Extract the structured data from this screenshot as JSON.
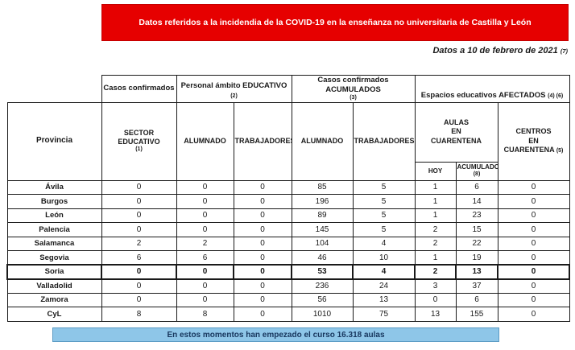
{
  "banner": {
    "text": "Datos referidos a la incidendia de la COVID-19 en la enseñanza no universitaria de Castilla y León"
  },
  "dateline": {
    "text": "Datos a 10 de febrero de 2021",
    "note": "(7)"
  },
  "colors": {
    "banner_bg": "#e60000",
    "banner_text": "#ffffff",
    "footer_bg": "#8ec6e8",
    "footer_text": "#17365d",
    "table_border": "#1a1a1a"
  },
  "table": {
    "group_headers": {
      "casos_confirmados": {
        "label": "Casos confirmados"
      },
      "personal_educativo": {
        "label": "Personal ámbito EDUCATIVO",
        "note": "(2)"
      },
      "casos_acumulados": {
        "label": "Casos confirmados ACUMULADOS",
        "note": "(3)"
      },
      "espacios_afectados": {
        "label": "Espacios educativos AFECTADOS",
        "note": "(4) (6)"
      }
    },
    "columns": {
      "provincia": {
        "label": "Provincia"
      },
      "sector": {
        "label": "SECTOR EDUCATIVO",
        "note": "(1)"
      },
      "alumnado": {
        "label": "ALUMNADO"
      },
      "trabajadores": {
        "label": "TRABAJADORES"
      },
      "alumnado_acum": {
        "label": "ALUMNADO"
      },
      "trabajadores_acum": {
        "label": "TRABAJADORES"
      },
      "aulas_cuarentena": {
        "label": "AULAS\nEN\nCUARENTENA"
      },
      "hoy": {
        "label": "HOY"
      },
      "acumulado": {
        "label": "ACUMULADO",
        "note": "(8)"
      },
      "centros": {
        "label": "CENTROS\nEN\nCUARENTENA",
        "note": "(5)"
      }
    },
    "rows": [
      {
        "province": "Ávila",
        "values": [
          "0",
          "0",
          "0",
          "85",
          "5",
          "1",
          "6",
          "0"
        ],
        "highlight": false
      },
      {
        "province": "Burgos",
        "values": [
          "0",
          "0",
          "0",
          "196",
          "5",
          "1",
          "14",
          "0"
        ],
        "highlight": false
      },
      {
        "province": "León",
        "values": [
          "0",
          "0",
          "0",
          "89",
          "5",
          "1",
          "23",
          "0"
        ],
        "highlight": false
      },
      {
        "province": "Palencia",
        "values": [
          "0",
          "0",
          "0",
          "145",
          "5",
          "2",
          "15",
          "0"
        ],
        "highlight": false
      },
      {
        "province": "Salamanca",
        "values": [
          "2",
          "2",
          "0",
          "104",
          "4",
          "2",
          "22",
          "0"
        ],
        "highlight": false
      },
      {
        "province": "Segovia",
        "values": [
          "6",
          "6",
          "0",
          "46",
          "10",
          "1",
          "19",
          "0"
        ],
        "highlight": false
      },
      {
        "province": "Soria",
        "values": [
          "0",
          "0",
          "0",
          "53",
          "4",
          "2",
          "13",
          "0"
        ],
        "highlight": true
      },
      {
        "province": "Valladolid",
        "values": [
          "0",
          "0",
          "0",
          "236",
          "24",
          "3",
          "37",
          "0"
        ],
        "highlight": false
      },
      {
        "province": "Zamora",
        "values": [
          "0",
          "0",
          "0",
          "56",
          "13",
          "0",
          "6",
          "0"
        ],
        "highlight": false
      },
      {
        "province": "CyL",
        "values": [
          "8",
          "8",
          "0",
          "1010",
          "75",
          "13",
          "155",
          "0"
        ],
        "highlight": false
      }
    ]
  },
  "footer": {
    "text": "En estos momentos han empezado el curso 16.318 aulas"
  }
}
